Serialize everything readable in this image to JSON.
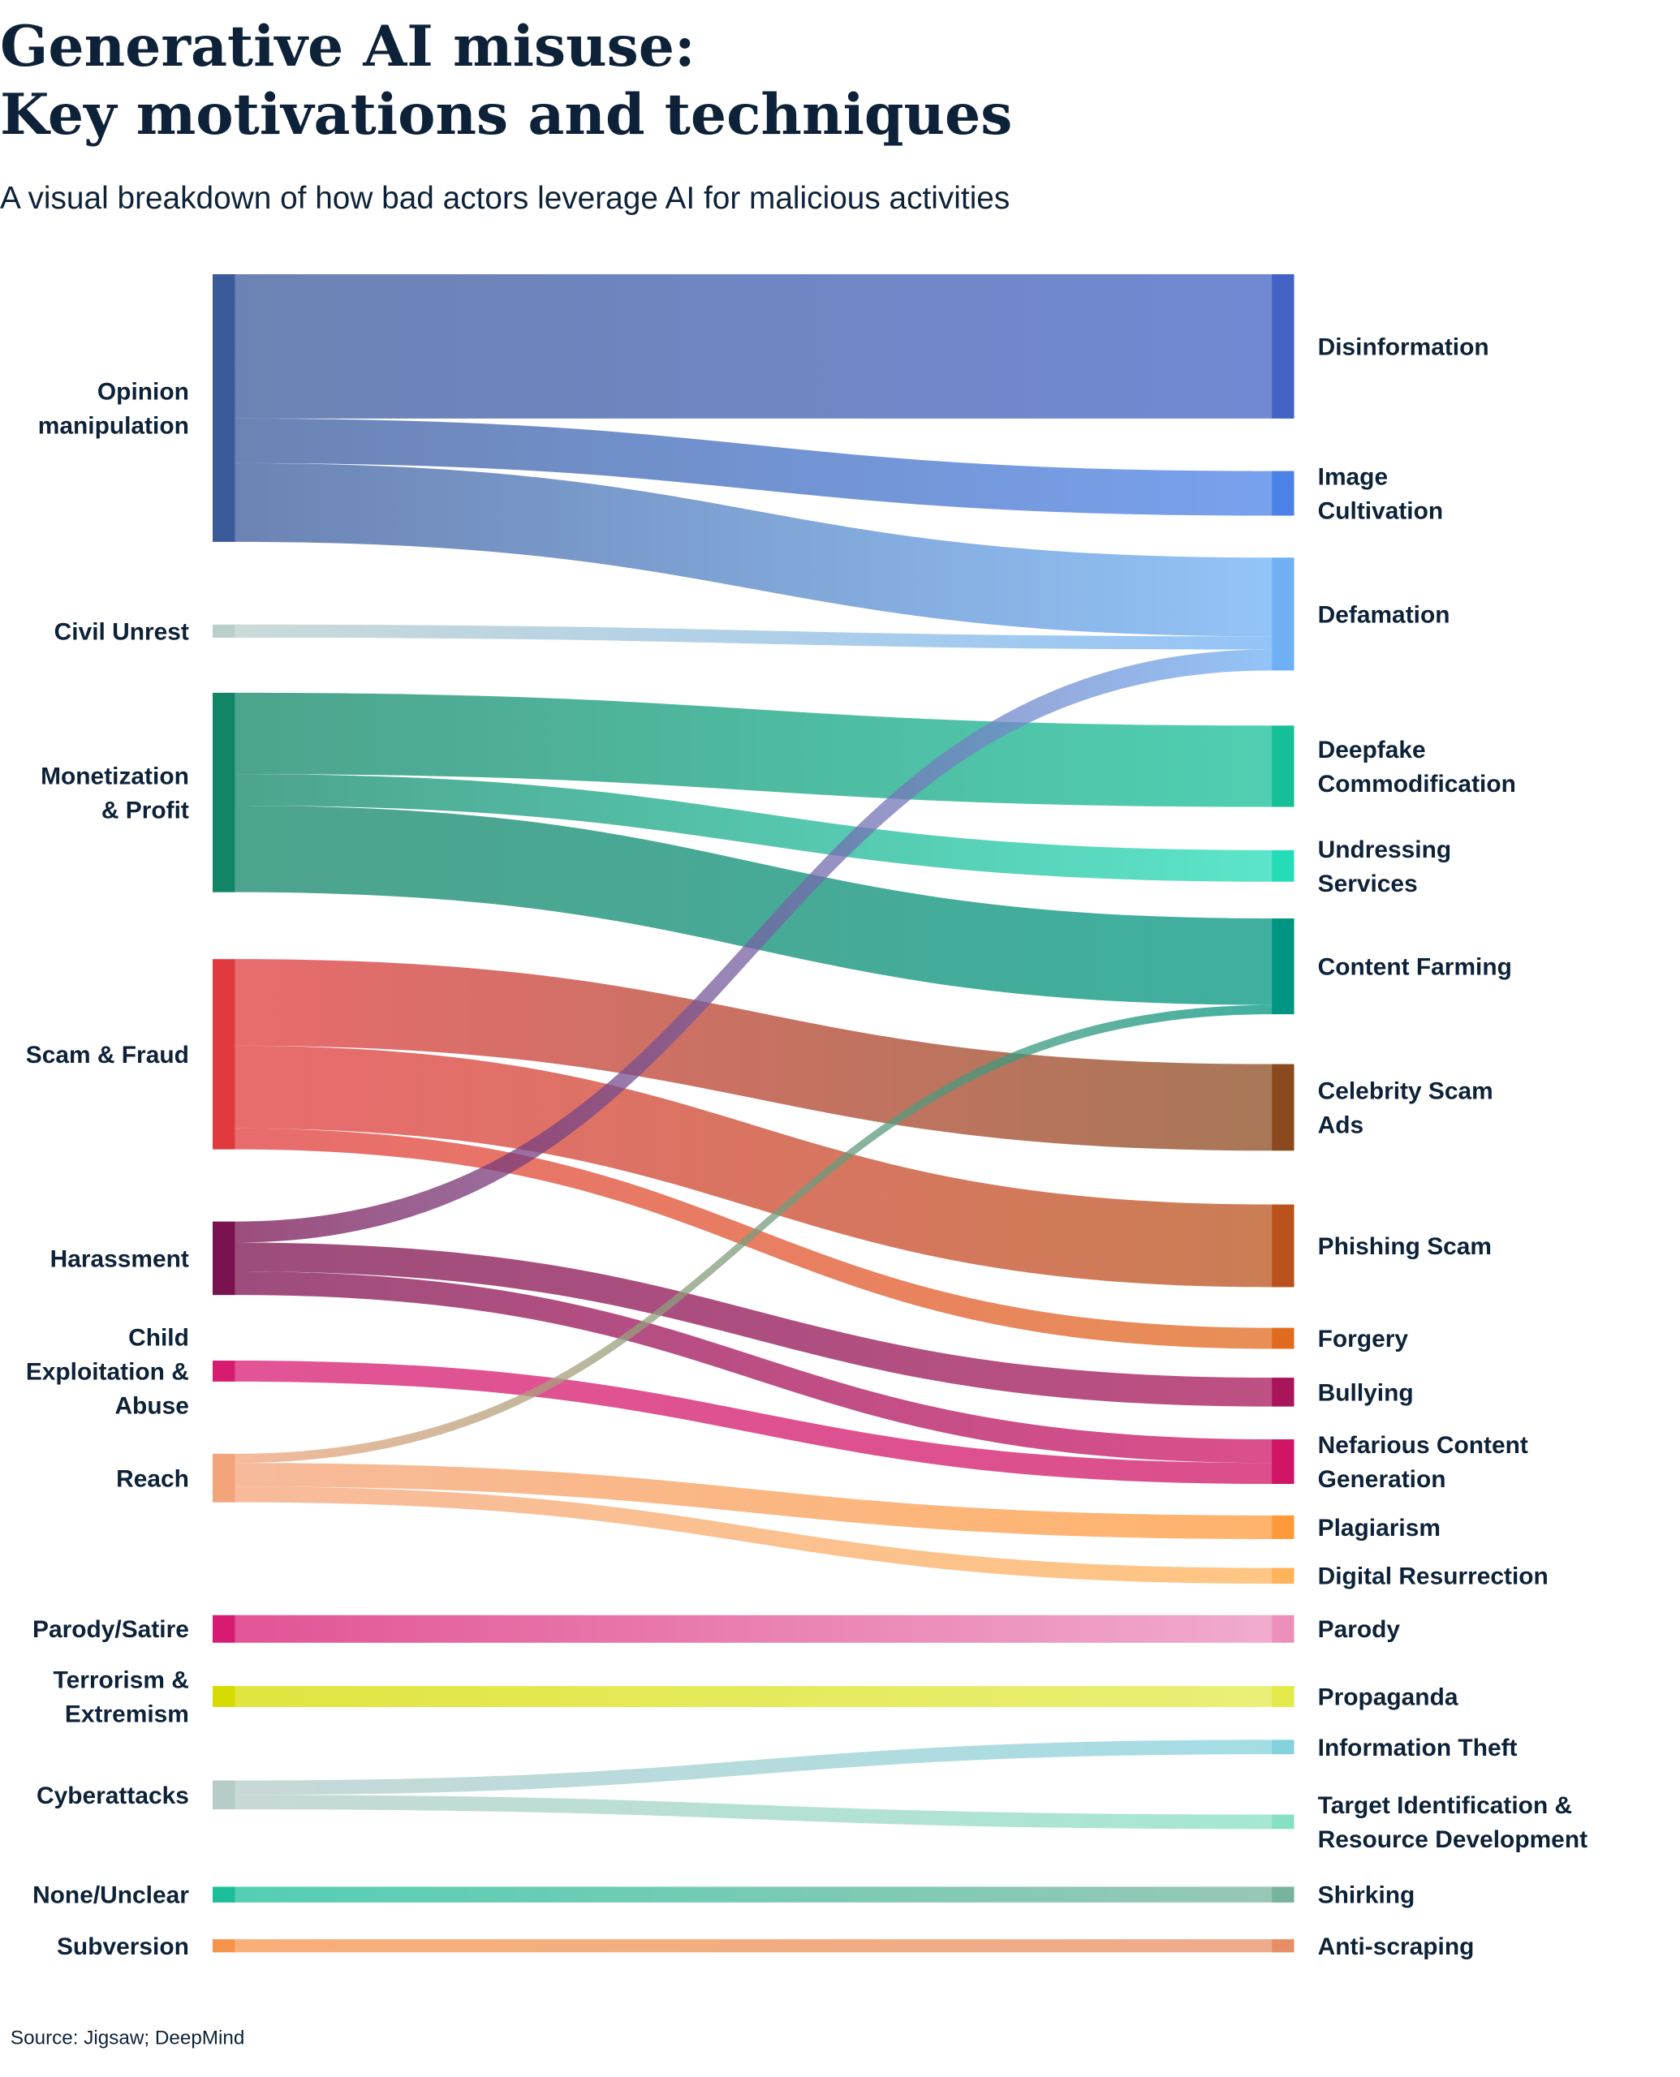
{
  "title": [
    "Generative AI misuse:",
    "Key motivations and techniques"
  ],
  "subtitle": "A visual breakdown of how bad actors leverage AI for malicious activities",
  "source": "Source: Jigsaw; DeepMind",
  "chart_data": {
    "type": "sankey",
    "note_values": "relative flow magnitudes estimated from band thickness (no numbers printed)",
    "sources": [
      {
        "id": "opinion",
        "label": [
          "Opinion",
          "manipulation"
        ],
        "color": "#3a5a9a"
      },
      {
        "id": "civil",
        "label": [
          "Civil Unrest"
        ],
        "color": "#b9cfcc"
      },
      {
        "id": "monet",
        "label": [
          "Monetization",
          "& Profit"
        ],
        "color": "#128566"
      },
      {
        "id": "scam",
        "label": [
          "Scam & Fraud"
        ],
        "color": "#e03a3e"
      },
      {
        "id": "harass",
        "label": [
          "Harassment"
        ],
        "color": "#7b1250"
      },
      {
        "id": "child",
        "label": [
          "Child",
          "Exploitation &",
          "Abuse"
        ],
        "color": "#d81b72"
      },
      {
        "id": "reach",
        "label": [
          "Reach"
        ],
        "color": "#f4a47a"
      },
      {
        "id": "parodysat",
        "label": [
          "Parody/Satire"
        ],
        "color": "#d81b72"
      },
      {
        "id": "terror",
        "label": [
          "Terrorism &",
          "Extremism"
        ],
        "color": "#d6dc00"
      },
      {
        "id": "cyber",
        "label": [
          "Cyberattacks"
        ],
        "color": "#b5ccc8"
      },
      {
        "id": "none",
        "label": [
          "None/Unclear"
        ],
        "color": "#1bbf9a"
      },
      {
        "id": "subv",
        "label": [
          "Subversion"
        ],
        "color": "#f5944a"
      }
    ],
    "targets": [
      {
        "id": "disinfo",
        "label": [
          "Disinformation"
        ],
        "color": "#4262c4"
      },
      {
        "id": "image",
        "label": [
          "Image",
          "Cultivation"
        ],
        "color": "#4b82e8"
      },
      {
        "id": "defam",
        "label": [
          "Defamation"
        ],
        "color": "#6fb0f5"
      },
      {
        "id": "deepfake",
        "label": [
          "Deepfake",
          "Commodification"
        ],
        "color": "#15bf98"
      },
      {
        "id": "undress",
        "label": [
          "Undressing",
          "Services"
        ],
        "color": "#25dcb8"
      },
      {
        "id": "content",
        "label": [
          "Content Farming"
        ],
        "color": "#009580"
      },
      {
        "id": "celeb",
        "label": [
          "Celebrity Scam",
          "Ads"
        ],
        "color": "#8b4a1e"
      },
      {
        "id": "phish",
        "label": [
          "Phishing Scam"
        ],
        "color": "#b9521b"
      },
      {
        "id": "forgery",
        "label": [
          "Forgery"
        ],
        "color": "#e06a1e"
      },
      {
        "id": "bully",
        "label": [
          "Bullying"
        ],
        "color": "#a8155a"
      },
      {
        "id": "nefar",
        "label": [
          "Nefarious Content",
          "Generation"
        ],
        "color": "#d01466"
      },
      {
        "id": "plag",
        "label": [
          "Plagiarism"
        ],
        "color": "#ff9a3a"
      },
      {
        "id": "digres",
        "label": [
          "Digital Resurrection"
        ],
        "color": "#ffb35a"
      },
      {
        "id": "parody",
        "label": [
          "Parody"
        ],
        "color": "#ec90bb"
      },
      {
        "id": "propag",
        "label": [
          "Propaganda"
        ],
        "color": "#e3ea4a"
      },
      {
        "id": "infotheft",
        "label": [
          "Information Theft"
        ],
        "color": "#84d2dc"
      },
      {
        "id": "target",
        "label": [
          "Target Identification &",
          "Resource Development"
        ],
        "color": "#86e0c4"
      },
      {
        "id": "shirk",
        "label": [
          "Shirking"
        ],
        "color": "#76b49e"
      },
      {
        "id": "anti",
        "label": [
          "Anti-scraping"
        ],
        "color": "#e88e66"
      }
    ],
    "flows": [
      {
        "from": "opinion",
        "to": "disinfo",
        "value": 110
      },
      {
        "from": "opinion",
        "to": "image",
        "value": 34
      },
      {
        "from": "opinion",
        "to": "defam",
        "value": 60
      },
      {
        "from": "civil",
        "to": "defam",
        "value": 10
      },
      {
        "from": "monet",
        "to": "deepfake",
        "value": 62
      },
      {
        "from": "monet",
        "to": "undress",
        "value": 24
      },
      {
        "from": "monet",
        "to": "content",
        "value": 66
      },
      {
        "from": "scam",
        "to": "celeb",
        "value": 66
      },
      {
        "from": "scam",
        "to": "phish",
        "value": 63
      },
      {
        "from": "scam",
        "to": "forgery",
        "value": 16
      },
      {
        "from": "harass",
        "to": "defam",
        "value": 16
      },
      {
        "from": "harass",
        "to": "bully",
        "value": 22
      },
      {
        "from": "harass",
        "to": "nefar",
        "value": 18
      },
      {
        "from": "child",
        "to": "nefar",
        "value": 16
      },
      {
        "from": "reach",
        "to": "content",
        "value": 7
      },
      {
        "from": "reach",
        "to": "plag",
        "value": 18
      },
      {
        "from": "reach",
        "to": "digres",
        "value": 12
      },
      {
        "from": "parodysat",
        "to": "parody",
        "value": 21
      },
      {
        "from": "terror",
        "to": "propag",
        "value": 16
      },
      {
        "from": "cyber",
        "to": "infotheft",
        "value": 11
      },
      {
        "from": "cyber",
        "to": "target",
        "value": 11
      },
      {
        "from": "none",
        "to": "shirk",
        "value": 12
      },
      {
        "from": "subv",
        "to": "anti",
        "value": 10
      }
    ]
  }
}
